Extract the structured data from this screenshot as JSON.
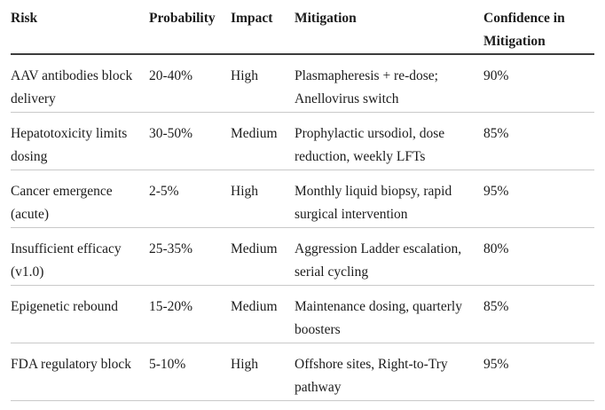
{
  "colors": {
    "text": "#1c1c1c",
    "header_rule": "#3d3d3d",
    "row_rule": "#c9c9c9",
    "background": "#ffffff"
  },
  "table": {
    "columns": [
      {
        "key": "risk",
        "label": "Risk"
      },
      {
        "key": "probability",
        "label": "Probability"
      },
      {
        "key": "impact",
        "label": "Impact"
      },
      {
        "key": "mitigation",
        "label": "Mitigation"
      },
      {
        "key": "confidence",
        "label": "Confidence in Mitigation"
      }
    ],
    "rows": [
      {
        "risk": "AAV antibodies block delivery",
        "probability": "20-40%",
        "impact": "High",
        "mitigation": "Plasmapheresis + re-dose; Anellovirus switch",
        "confidence": "90%"
      },
      {
        "risk": "Hepatotoxicity limits dosing",
        "probability": "30-50%",
        "impact": "Medium",
        "mitigation": "Prophylactic ursodiol, dose reduction, weekly LFTs",
        "confidence": "85%"
      },
      {
        "risk": "Cancer emergence (acute)",
        "probability": "2-5%",
        "impact": "High",
        "mitigation": "Monthly liquid biopsy, rapid surgical intervention",
        "confidence": "95%"
      },
      {
        "risk": "Insufficient efficacy (v1.0)",
        "probability": "25-35%",
        "impact": "Medium",
        "mitigation": "Aggression Ladder escalation, serial cycling",
        "confidence": "80%"
      },
      {
        "risk": "Epigenetic rebound",
        "probability": "15-20%",
        "impact": "Medium",
        "mitigation": "Maintenance dosing, quarterly boosters",
        "confidence": "85%"
      },
      {
        "risk": "FDA regulatory block",
        "probability": "5-10%",
        "impact": "High",
        "mitigation": "Offshore sites, Right-to-Try pathway",
        "confidence": "95%"
      }
    ]
  }
}
